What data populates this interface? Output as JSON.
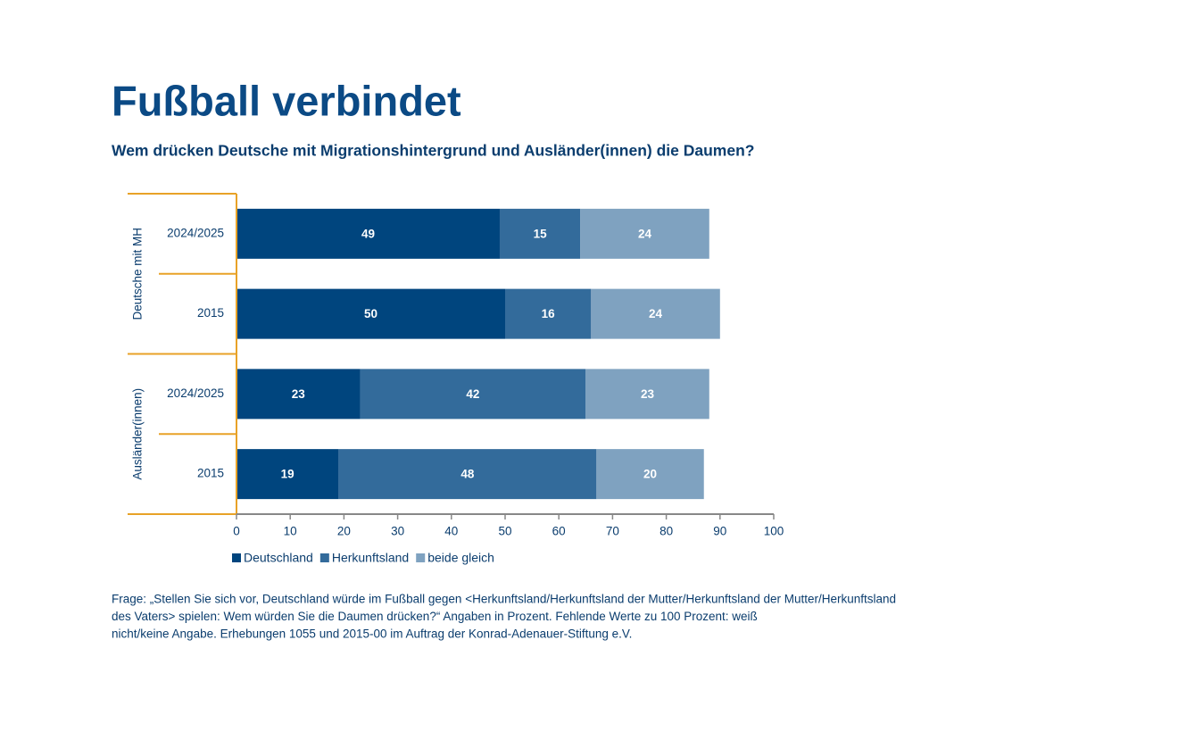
{
  "chart_data": {
    "type": "stacked-bar-horizontal",
    "title": "Fußball verbindet",
    "subtitle": "Wem drücken Deutsche mit Migrationshintergrund und Ausländer(innen) die Daumen?",
    "groups": [
      "Deutsche mit MH",
      "Ausländer(innen)"
    ],
    "categories": [
      "2024/2025",
      "2015",
      "2024/2025",
      "2015"
    ],
    "series": [
      {
        "name": "Deutschland",
        "color": "#00457e",
        "values": [
          49,
          50,
          23,
          19
        ]
      },
      {
        "name": "Herkunftsland",
        "color": "#336b9b",
        "values": [
          15,
          16,
          42,
          48
        ]
      },
      {
        "name": "beide gleich",
        "color": "#7fa2c0",
        "values": [
          24,
          24,
          23,
          20
        ]
      }
    ],
    "xlim": [
      0,
      100
    ],
    "xticks": [
      0,
      10,
      20,
      30,
      40,
      50,
      60,
      70,
      80,
      90,
      100
    ],
    "legend": "bottom-left",
    "note": [
      "Frage: „Stellen Sie sich vor, Deutschland würde im Fußball gegen <Herkunftsland/Herkunftsland der Mutter/Herkunftsland der Mutter/Herkunftsland",
      "des Vaters> spielen: Wem würden Sie die Daumen drücken?“ Angaben in Prozent. Fehlende Werte zu 100 Prozent: weiß",
      "nicht/keine Angabe. Erhebungen 1055 und 2015-00 im Auftrag der Konrad-Adenauer-Stiftung e.V."
    ]
  }
}
